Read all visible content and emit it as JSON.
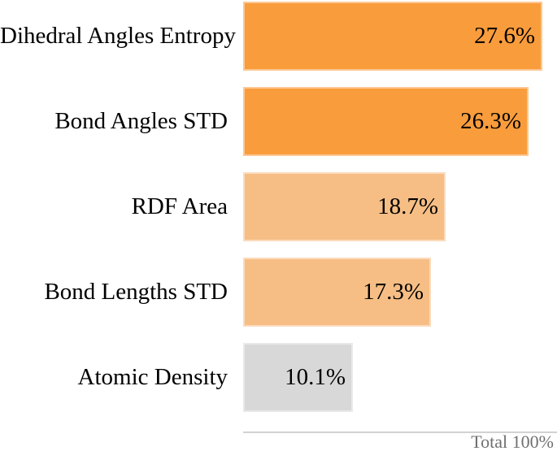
{
  "chart_data": {
    "type": "bar",
    "orientation": "horizontal",
    "title": "",
    "xlabel": "",
    "ylabel": "",
    "categories": [
      "Dihedral Angles Entropy",
      "Bond Angles STD",
      "RDF Area",
      "Bond Lengths STD",
      "Atomic Density"
    ],
    "values": [
      27.6,
      26.3,
      18.7,
      17.3,
      10.1
    ],
    "value_labels": [
      "27.6%",
      "26.3%",
      "18.7%",
      "17.3%",
      "10.1%"
    ],
    "bar_colors": [
      "#F99C3C",
      "#F99C3C",
      "#F6BE85",
      "#F6BE85",
      "#D8D8D8"
    ],
    "value_label_position": "inside-end",
    "xlim": [
      0,
      27.6
    ],
    "grid": false,
    "legend": false,
    "baseline_color": "#D2D2D2",
    "total_label": "Total 100%",
    "total_label_color": "#6F6F6F",
    "label_text_color": "#000000"
  }
}
